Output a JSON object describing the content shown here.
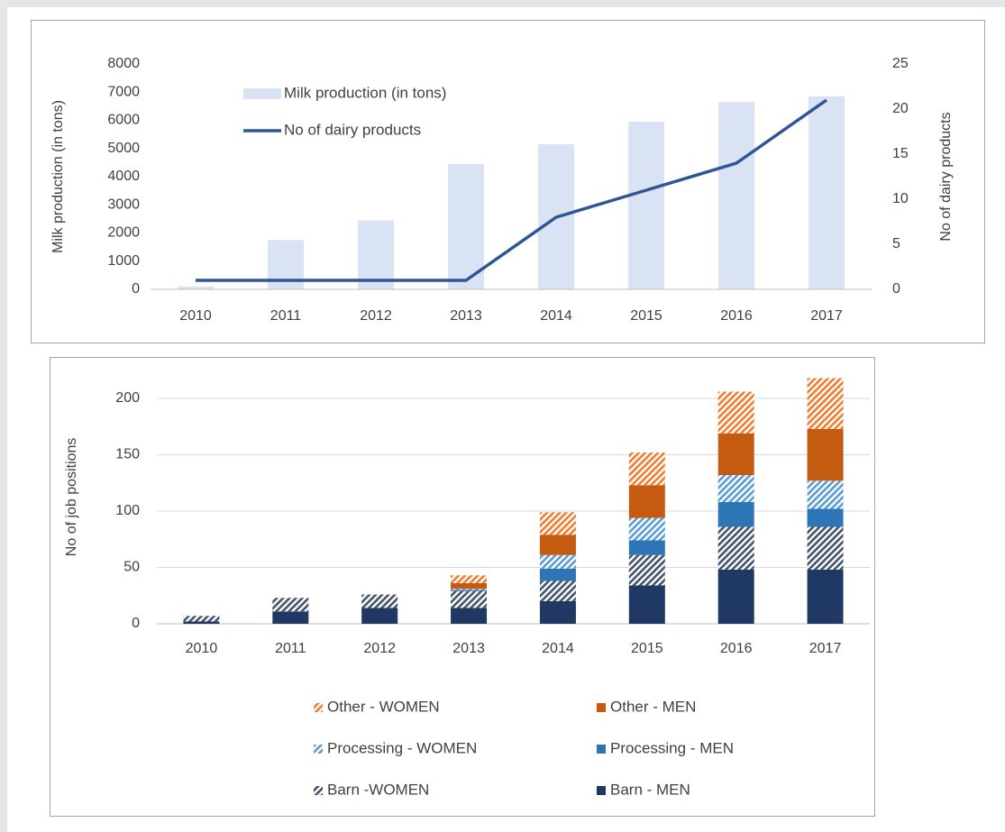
{
  "chart_data": [
    {
      "type": "bar",
      "categories": [
        "2010",
        "2011",
        "2012",
        "2013",
        "2014",
        "2015",
        "2016",
        "2017"
      ],
      "ylabel": "Milk production (in tons)",
      "y2label": "No of dairy products",
      "ylim": [
        0,
        8000
      ],
      "yticks": [
        0,
        1000,
        2000,
        3000,
        4000,
        5000,
        6000,
        7000,
        8000
      ],
      "y2lim": [
        0,
        25
      ],
      "y2ticks": [
        0,
        5,
        10,
        15,
        20,
        25
      ],
      "grid": false,
      "legend": "top-left",
      "series": [
        {
          "name": "Milk production (in tons)",
          "type": "bar",
          "color": "#dae3f3",
          "values": [
            100,
            1750,
            2450,
            4450,
            5150,
            5950,
            6650,
            6850
          ]
        },
        {
          "name": "No of dairy products",
          "type": "line",
          "axis": "y2",
          "color": "#2f5597",
          "values": [
            1,
            1,
            1,
            1,
            8,
            11,
            14,
            21
          ]
        }
      ]
    },
    {
      "type": "stacked_bar",
      "categories": [
        "2010",
        "2011",
        "2012",
        "2013",
        "2014",
        "2015",
        "2016",
        "2017"
      ],
      "ylabel": "No of job positions",
      "ylim": [
        0,
        225
      ],
      "yticks": [
        0,
        50,
        100,
        150,
        200
      ],
      "grid": true,
      "legend": "bottom",
      "series": [
        {
          "name": "Barn - MEN",
          "color": "#1f3864",
          "hatched": false,
          "values": [
            2,
            11,
            14,
            14,
            20,
            34,
            48,
            48
          ]
        },
        {
          "name": "Barn -WOMEN",
          "color": "#44546a",
          "hatched": true,
          "values": [
            5,
            12,
            12,
            15,
            18,
            27,
            38,
            38
          ]
        },
        {
          "name": "Processing - MEN",
          "color": "#2e75b6",
          "hatched": false,
          "values": [
            0,
            0,
            0,
            1,
            11,
            13,
            22,
            16
          ]
        },
        {
          "name": "Processing - WOMEN",
          "color": "#5b9bd5",
          "hatched": true,
          "values": [
            0,
            0,
            0,
            1,
            12,
            20,
            24,
            25
          ]
        },
        {
          "name": "Other - MEN",
          "color": "#c55a11",
          "hatched": false,
          "values": [
            0,
            0,
            0,
            5,
            18,
            29,
            37,
            46
          ]
        },
        {
          "name": "Other - WOMEN",
          "color": "#ed7d31",
          "hatched": true,
          "values": [
            0,
            0,
            0,
            7,
            20,
            29,
            37,
            45
          ]
        }
      ]
    }
  ]
}
